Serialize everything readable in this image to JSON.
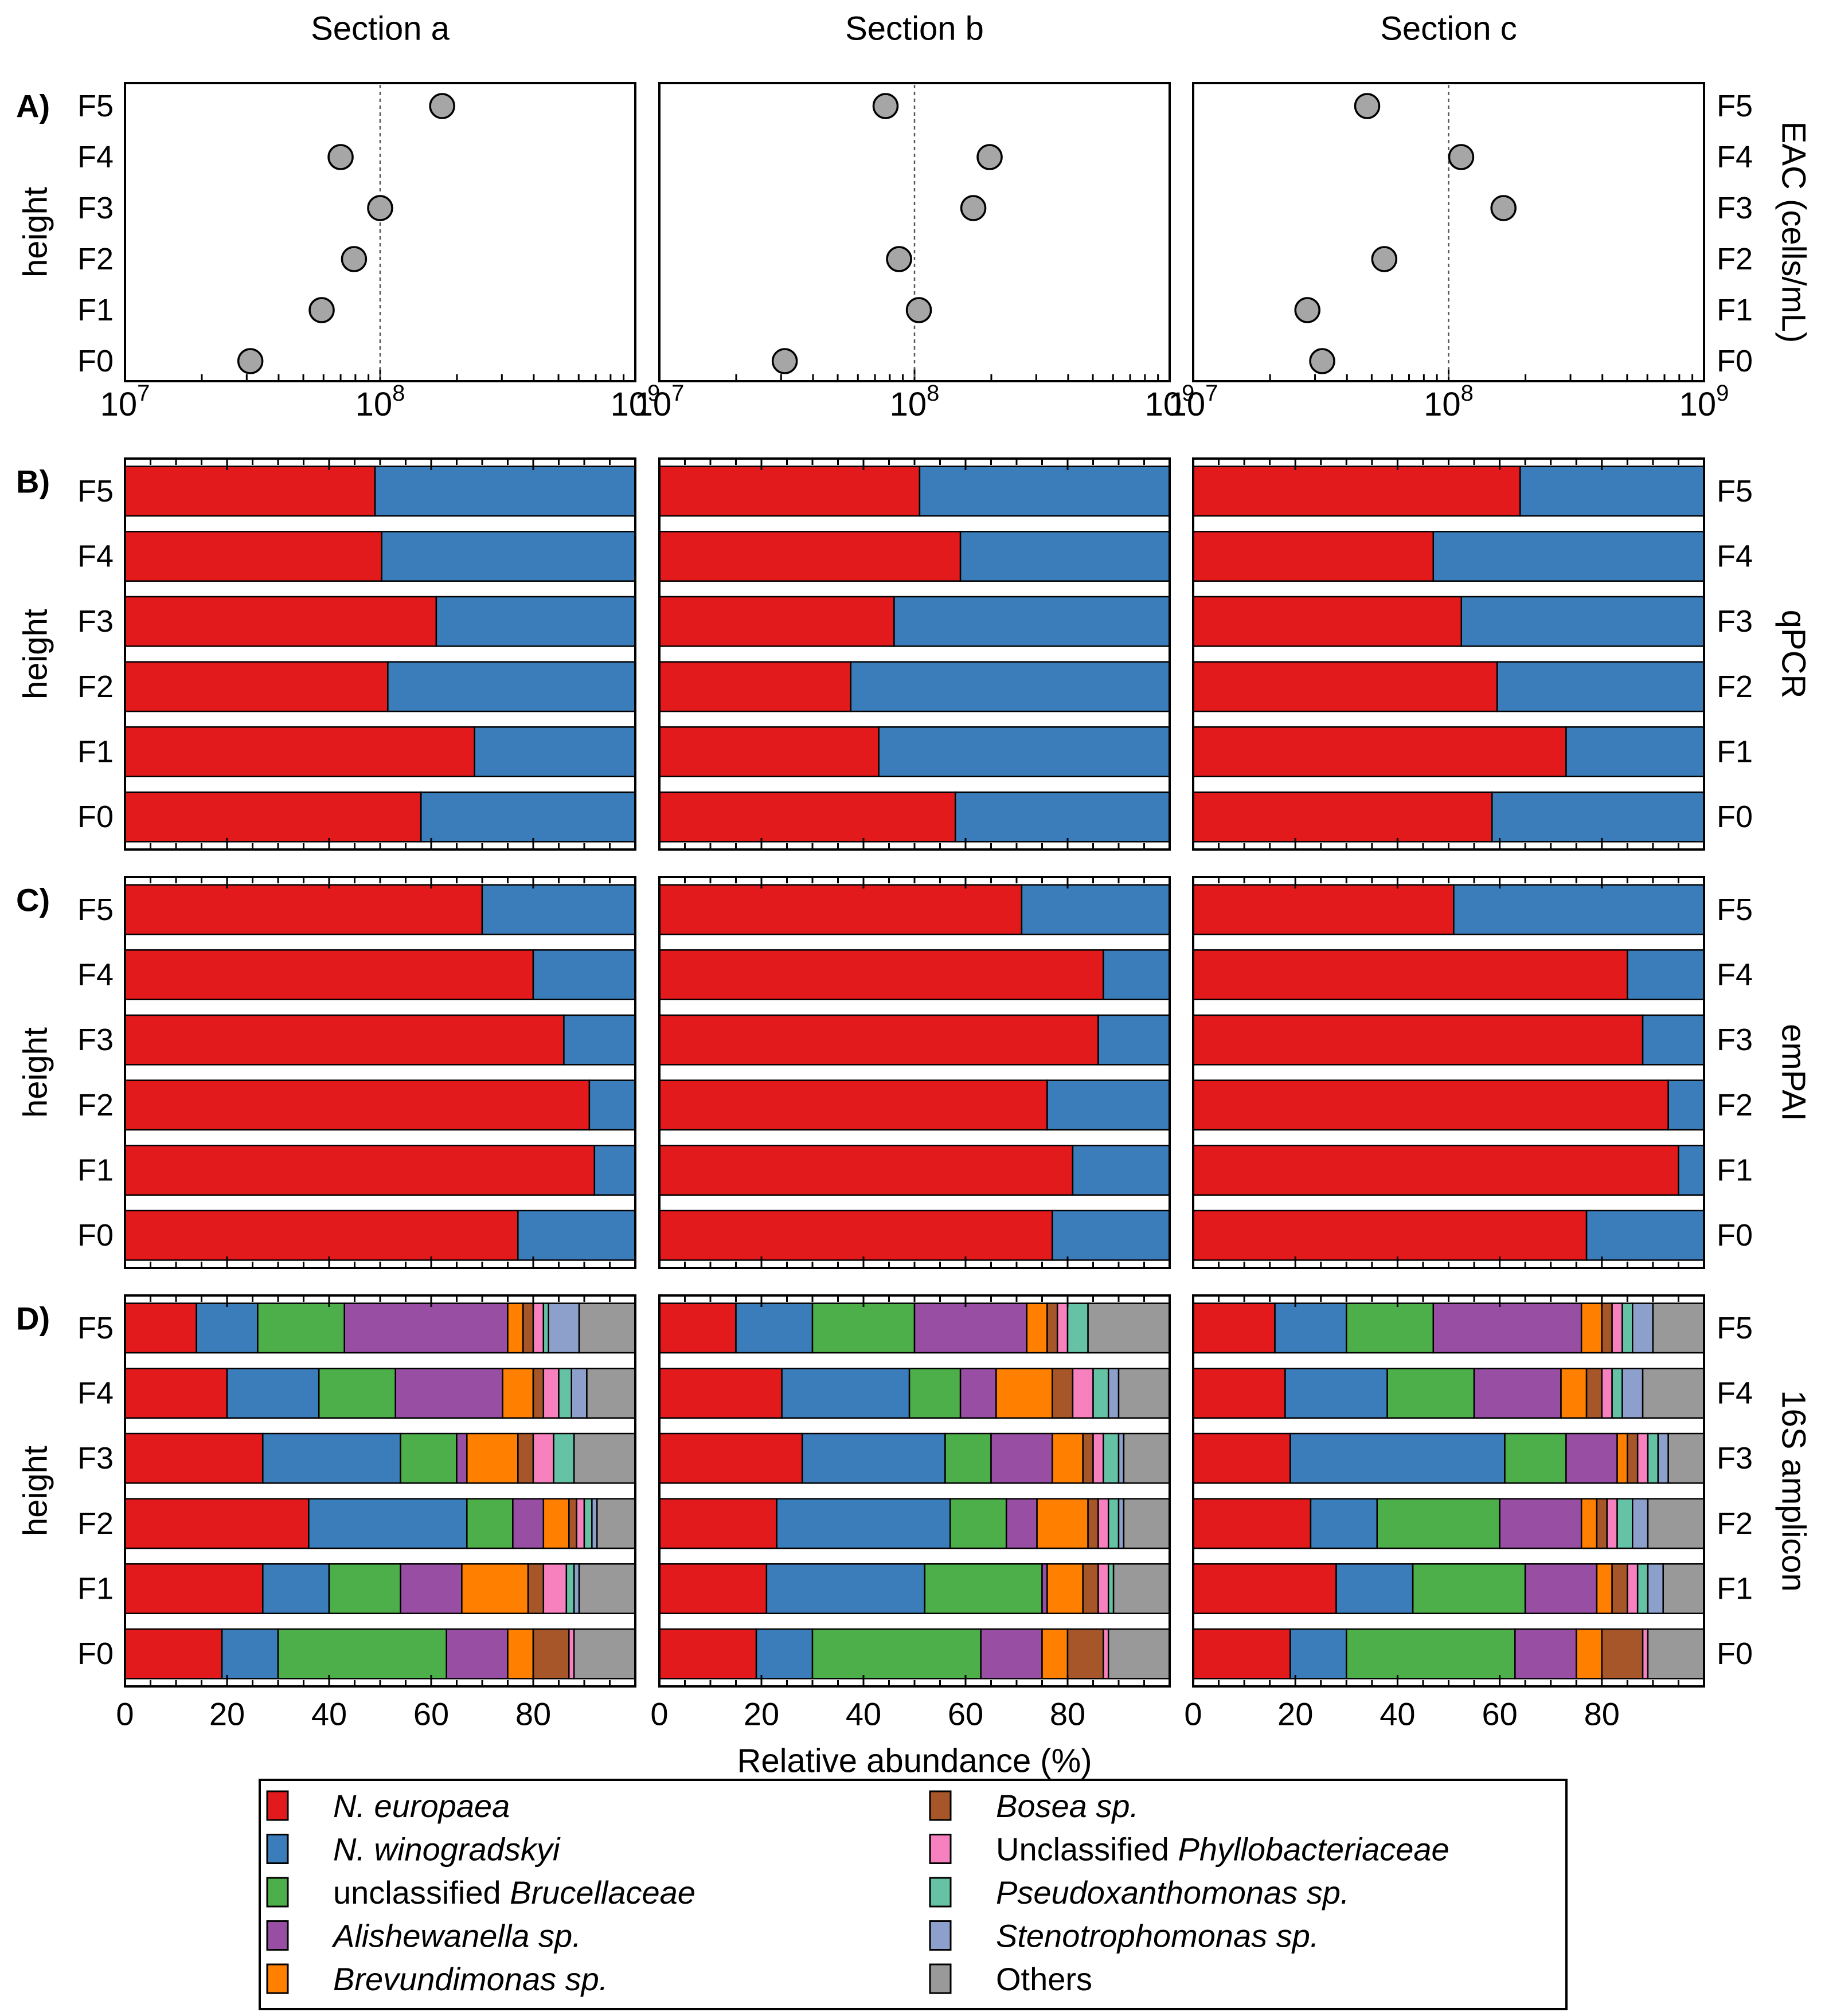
{
  "chart_data": {
    "type": "multi-panel",
    "sections": [
      "Section a",
      "Section b",
      "Section c"
    ],
    "heights": [
      "F0",
      "F1",
      "F2",
      "F3",
      "F4",
      "F5"
    ],
    "colors": {
      "ne": "#e31a1c",
      "nw": "#3a7dba",
      "bru": "#4daf4a",
      "ali": "#984ea3",
      "brev": "#ff7f00",
      "bos": "#a65628",
      "phy": "#f781bf",
      "pse": "#66c2a5",
      "ste": "#8da0cb",
      "oth": "#999999"
    },
    "panelA": {
      "label": "A)",
      "ylabel": "height",
      "right_label": "EAC (cells/mL)",
      "type": "scatter",
      "xscale": "log",
      "xlim": [
        10000000,
        1000000000
      ],
      "ticks": [
        {
          "base": "10",
          "exp": "7"
        },
        {
          "base": "10",
          "exp": "8"
        },
        {
          "base": "10",
          "exp": "9"
        }
      ],
      "reference_line": 100000000,
      "values": [
        [
          31000000,
          59000000,
          79000000,
          100000000,
          70000000,
          175000000
        ],
        [
          31000000,
          104000000,
          87000000,
          170000000,
          197000000,
          77000000
        ],
        [
          32000000,
          28000000,
          56000000,
          164000000,
          112000000,
          48000000
        ]
      ]
    },
    "panelB": {
      "label": "B)",
      "ylabel": "height",
      "right_label": "qPCR",
      "type": "stacked-bar",
      "series": [
        "ne",
        "nw"
      ],
      "values": [
        [
          [
            58,
            42
          ],
          [
            68.5,
            31.5
          ],
          [
            51.5,
            48.5
          ],
          [
            61,
            39
          ],
          [
            50.3,
            49.7
          ],
          [
            49,
            51
          ]
        ],
        [
          [
            58,
            42
          ],
          [
            43,
            57
          ],
          [
            37.5,
            62.5
          ],
          [
            46,
            54
          ],
          [
            59,
            41
          ],
          [
            51,
            49
          ]
        ],
        [
          [
            58.5,
            41.5
          ],
          [
            73,
            27
          ],
          [
            59.5,
            40.5
          ],
          [
            52.5,
            47.5
          ],
          [
            47,
            53
          ],
          [
            64,
            36
          ]
        ]
      ]
    },
    "panelC": {
      "label": "C)",
      "ylabel": "height",
      "right_label": "emPAI",
      "type": "stacked-bar",
      "series": [
        "ne",
        "nw"
      ],
      "values": [
        [
          [
            77,
            23
          ],
          [
            92,
            8
          ],
          [
            91,
            9
          ],
          [
            86,
            14
          ],
          [
            80,
            20
          ],
          [
            70,
            30
          ]
        ],
        [
          [
            77,
            23
          ],
          [
            81,
            19
          ],
          [
            76,
            24
          ],
          [
            86,
            14
          ],
          [
            87,
            13
          ],
          [
            71,
            29
          ]
        ],
        [
          [
            77,
            23
          ],
          [
            95,
            5
          ],
          [
            93,
            7
          ],
          [
            88,
            12
          ],
          [
            85,
            15
          ],
          [
            51,
            49
          ]
        ]
      ]
    },
    "panelD": {
      "label": "D)",
      "ylabel": "height",
      "right_label": "16S amplicon",
      "type": "stacked-bar",
      "series": [
        "ne",
        "nw",
        "bru",
        "ali",
        "brev",
        "bos",
        "phy",
        "pse",
        "ste",
        "oth"
      ],
      "values": [
        [
          [
            19,
            11,
            33,
            12,
            5,
            7,
            1,
            0,
            0,
            12
          ],
          [
            27,
            13,
            14,
            12,
            13,
            3,
            4.5,
            1.5,
            1,
            11
          ],
          [
            36,
            31,
            9,
            6,
            5,
            1.5,
            1.5,
            1.5,
            1,
            7.5
          ],
          [
            27,
            27,
            11,
            2,
            10,
            3,
            4,
            4,
            0,
            12
          ],
          [
            20,
            18,
            15,
            21,
            6,
            2,
            3,
            2.5,
            3,
            9.5
          ],
          [
            14,
            12,
            17,
            32,
            3,
            2,
            2,
            1,
            6,
            11
          ]
        ],
        [
          [
            19,
            11,
            33,
            12,
            5,
            7,
            1,
            0,
            0,
            12
          ],
          [
            21,
            31,
            23,
            1,
            7,
            3,
            2,
            1,
            0,
            11
          ],
          [
            23,
            34,
            11,
            6,
            10,
            2,
            2,
            2,
            1,
            9
          ],
          [
            28,
            28,
            9,
            12,
            6,
            2,
            2,
            3,
            1,
            9
          ],
          [
            24,
            25,
            10,
            7,
            11,
            4,
            4,
            3,
            2,
            10
          ],
          [
            15,
            15,
            20,
            22,
            4,
            2,
            2,
            4,
            0,
            16
          ]
        ],
        [
          [
            19,
            11,
            33,
            12,
            5,
            8,
            1,
            0,
            0,
            11
          ],
          [
            28,
            15,
            22,
            14,
            3,
            3,
            2,
            2,
            3,
            8
          ],
          [
            23,
            13,
            24,
            16,
            3,
            2,
            2,
            3,
            3,
            11
          ],
          [
            19,
            42,
            12,
            10,
            2,
            2,
            2,
            2,
            2,
            7
          ],
          [
            18,
            20,
            17,
            17,
            5,
            3,
            2,
            2,
            4,
            12
          ],
          [
            16,
            14,
            17,
            29,
            4,
            2,
            2,
            2,
            4,
            10
          ]
        ]
      ]
    },
    "xaxis": {
      "label": "Relative abundance (%)",
      "ticks": [
        "0",
        "20",
        "40",
        "60",
        "80"
      ],
      "tick_values": [
        0,
        20,
        40,
        60,
        80
      ],
      "xlim": [
        0,
        100
      ]
    },
    "legend": {
      "position": "bottom-center",
      "items": [
        {
          "key": "ne",
          "prefix": "",
          "italic": "N. europaea"
        },
        {
          "key": "nw",
          "prefix": "",
          "italic": "N. winogradskyi"
        },
        {
          "key": "bru",
          "prefix": "unclassified ",
          "italic": "Brucellaceae"
        },
        {
          "key": "ali",
          "prefix": "",
          "italic": "Alishewanella sp."
        },
        {
          "key": "brev",
          "prefix": "",
          "italic": "Brevundimonas sp."
        },
        {
          "key": "bos",
          "prefix": "",
          "italic": "Bosea sp."
        },
        {
          "key": "phy",
          "prefix": "Unclassified ",
          "italic": "Phyllobacteriaceae"
        },
        {
          "key": "pse",
          "prefix": "",
          "italic": "Pseudoxanthomonas sp."
        },
        {
          "key": "ste",
          "prefix": "",
          "italic": "Stenotrophomonas sp."
        },
        {
          "key": "oth",
          "prefix": "Others",
          "italic": ""
        }
      ]
    }
  }
}
